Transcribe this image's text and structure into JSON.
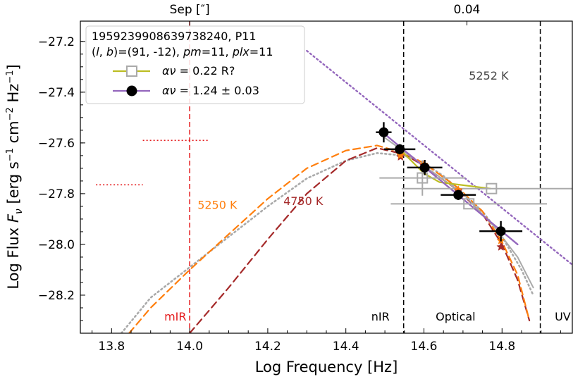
{
  "chart_data": {
    "type": "scatter",
    "xlabel": "Log Frequency [Hz]",
    "ylabel": "Log Flux Fν [erg s⁻¹ cm⁻² Hz⁻¹]",
    "ylabel_parts": {
      "main": "Log Flux ",
      "F": "F",
      "nu": "ν",
      "units_a": " [erg s",
      "exp1": "−1",
      "units_b": " cm",
      "exp2": "−2",
      "units_c": " Hz",
      "exp3": "−1",
      "units_d": "]"
    },
    "xlim": [
      13.72,
      14.98
    ],
    "ylim": [
      -28.35,
      -27.12
    ],
    "xticks": [
      13.8,
      14.0,
      14.2,
      14.4,
      14.6,
      14.8
    ],
    "xtick_labels": [
      "13.8",
      "14.0",
      "14.2",
      "14.4",
      "14.6",
      "14.8"
    ],
    "yticks": [
      -27.2,
      -27.4,
      -27.6,
      -27.8,
      -28.0,
      -28.2
    ],
    "ytick_labels": [
      "−27.2",
      "−27.4",
      "−27.6",
      "−27.8",
      "−28.0",
      "−28.2"
    ],
    "top_axis": {
      "label_left": "Sep [″]",
      "label_right": "0.04",
      "label_left_x": 14.0,
      "label_right_x": 14.71
    },
    "legend": {
      "title_line1": "1959239908639738240, P11",
      "title_line2": "(l, b)=(91, -12), pm=11, plx=11",
      "title_line2_parts": {
        "p1": "(",
        "l": "l",
        "p2": ", ",
        "b": "b",
        "p3": ")=(91, -12), ",
        "pm": "pm",
        "p4": "=11, ",
        "plx": "plx",
        "p5": "=11"
      },
      "entries": [
        {
          "symbol": "αν",
          "text": " =  0.22   R?",
          "color": "#bcbd22",
          "marker": "open-square"
        },
        {
          "symbol": "αν",
          "text": " =  1.24 ± 0.03",
          "color": "#9467bd",
          "marker": "filled-circle"
        }
      ]
    },
    "vertical_lines": [
      {
        "x": 14.0,
        "color": "#e41a1c",
        "style": "dashed",
        "label": "mIR"
      },
      {
        "x": 14.548,
        "color": "#000000",
        "style": "dashed",
        "label": "nIR"
      },
      {
        "x": 14.898,
        "color": "#000000",
        "style": "dashed",
        "label": "UV"
      }
    ],
    "region_labels": [
      {
        "text": "mIR",
        "x": 13.935,
        "y": -28.3,
        "color": "#e41a1c"
      },
      {
        "text": "nIR",
        "x": 14.465,
        "y": -28.3,
        "color": "#000000"
      },
      {
        "text": "Optical",
        "x": 14.63,
        "y": -28.3,
        "color": "#000000"
      },
      {
        "text": "UV",
        "x": 14.935,
        "y": -28.3,
        "color": "#000000"
      }
    ],
    "annotations": [
      {
        "text": "5252 K",
        "x": 14.715,
        "y": -27.35,
        "color": "#444444"
      },
      {
        "text": "5250 K",
        "x": 14.02,
        "y": -27.86,
        "color": "#ff7f0e"
      },
      {
        "text": "4750 K",
        "x": 14.24,
        "y": -27.845,
        "color": "#a52a2a"
      }
    ],
    "upper_limits": [
      {
        "x0": 13.88,
        "x1": 14.05,
        "y": -27.59,
        "color": "#e41a1c"
      },
      {
        "x0": 13.76,
        "x1": 13.88,
        "y": -27.765,
        "color": "#e41a1c"
      }
    ],
    "series": [
      {
        "name": "black filled points",
        "color": "#000000",
        "points": [
          {
            "x": 14.497,
            "y": -27.558,
            "xerr": 0.02,
            "yerr": 0.04
          },
          {
            "x": 14.538,
            "y": -27.625,
            "xerr": 0.04,
            "yerr": 0.02
          },
          {
            "x": 14.602,
            "y": -27.697,
            "xerr": 0.045,
            "yerr": 0.03
          },
          {
            "x": 14.688,
            "y": -27.805,
            "xerr": 0.045,
            "yerr": 0.02
          },
          {
            "x": 14.797,
            "y": -27.948,
            "xerr": 0.055,
            "yerr": 0.04
          }
        ]
      },
      {
        "name": "grey open squares",
        "color": "#aaaaaa",
        "points": [
          {
            "x": 14.596,
            "y": -27.738,
            "xerr": 0.11,
            "yerr": 0.07
          },
          {
            "x": 14.715,
            "y": -27.84,
            "xerr": 0.2,
            "yerr": 0.0
          },
          {
            "x": 14.773,
            "y": -27.78,
            "xerr": 0.23,
            "yerr": 0.0
          }
        ]
      },
      {
        "name": "orange stars",
        "color": "#ff7f0e",
        "points": [
          {
            "x": 14.54,
            "y": -27.648
          },
          {
            "x": 14.6,
            "y": -27.685
          },
          {
            "x": 14.688,
            "y": -27.785
          },
          {
            "x": 14.797,
            "y": -27.985
          }
        ]
      },
      {
        "name": "brown stars",
        "color": "#a52a2a",
        "points": [
          {
            "x": 14.54,
            "y": -27.655
          },
          {
            "x": 14.6,
            "y": -27.69
          },
          {
            "x": 14.688,
            "y": -27.79
          },
          {
            "x": 14.797,
            "y": -28.01
          }
        ]
      },
      {
        "name": "purple power law (dotted)",
        "color": "#9467bd",
        "style": "dotted",
        "points": [
          {
            "x": 14.3,
            "y": -27.237
          },
          {
            "x": 14.98,
            "y": -28.08
          }
        ]
      },
      {
        "name": "purple power law fit",
        "color": "#9467bd",
        "style": "solid",
        "points": [
          {
            "x": 14.49,
            "y": -27.553
          },
          {
            "x": 14.84,
            "y": -28.0
          }
        ]
      },
      {
        "name": "olive power law fit",
        "color": "#bcbd22",
        "style": "solid",
        "points": [
          {
            "x": 14.548,
            "y": -27.64
          },
          {
            "x": 14.6,
            "y": -27.72
          },
          {
            "x": 14.64,
            "y": -27.755
          },
          {
            "x": 14.77,
            "y": -27.78
          }
        ]
      },
      {
        "name": "grey solid curve",
        "color": "#aaaaaa",
        "style": "solid",
        "points": [
          {
            "x": 14.5,
            "y": -27.58
          },
          {
            "x": 14.6,
            "y": -27.69
          },
          {
            "x": 14.7,
            "y": -27.8
          },
          {
            "x": 14.78,
            "y": -27.93
          },
          {
            "x": 14.84,
            "y": -28.05
          },
          {
            "x": 14.88,
            "y": -28.17
          }
        ]
      },
      {
        "name": "5252 K blackbody (grey dotted)",
        "color": "#aaaaaa",
        "style": "dotted",
        "points": [
          {
            "x": 13.825,
            "y": -28.35
          },
          {
            "x": 13.9,
            "y": -28.21
          },
          {
            "x": 14.0,
            "y": -28.09
          },
          {
            "x": 14.1,
            "y": -27.97
          },
          {
            "x": 14.2,
            "y": -27.85
          },
          {
            "x": 14.3,
            "y": -27.74
          },
          {
            "x": 14.4,
            "y": -27.67
          },
          {
            "x": 14.48,
            "y": -27.64
          },
          {
            "x": 14.55,
            "y": -27.65
          },
          {
            "x": 14.6,
            "y": -27.68
          },
          {
            "x": 14.65,
            "y": -27.73
          },
          {
            "x": 14.7,
            "y": -27.8
          },
          {
            "x": 14.75,
            "y": -27.87
          },
          {
            "x": 14.8,
            "y": -27.97
          },
          {
            "x": 14.85,
            "y": -28.1
          },
          {
            "x": 14.88,
            "y": -28.2
          }
        ]
      },
      {
        "name": "5250 K model (orange dashed)",
        "color": "#ff7f0e",
        "style": "dashed",
        "points": [
          {
            "x": 13.845,
            "y": -28.35
          },
          {
            "x": 13.9,
            "y": -28.25
          },
          {
            "x": 14.0,
            "y": -28.1
          },
          {
            "x": 14.1,
            "y": -27.96
          },
          {
            "x": 14.2,
            "y": -27.82
          },
          {
            "x": 14.3,
            "y": -27.7
          },
          {
            "x": 14.4,
            "y": -27.63
          },
          {
            "x": 14.48,
            "y": -27.61
          },
          {
            "x": 14.55,
            "y": -27.64
          },
          {
            "x": 14.6,
            "y": -27.68
          },
          {
            "x": 14.69,
            "y": -27.78
          },
          {
            "x": 14.75,
            "y": -27.87
          },
          {
            "x": 14.8,
            "y": -27.99
          },
          {
            "x": 14.84,
            "y": -28.12
          },
          {
            "x": 14.87,
            "y": -28.3
          }
        ]
      },
      {
        "name": "4750 K model (brown dashed)",
        "color": "#a52a2a",
        "style": "dashed",
        "points": [
          {
            "x": 14.0,
            "y": -28.35
          },
          {
            "x": 14.1,
            "y": -28.17
          },
          {
            "x": 14.2,
            "y": -27.98
          },
          {
            "x": 14.3,
            "y": -27.8
          },
          {
            "x": 14.4,
            "y": -27.67
          },
          {
            "x": 14.48,
            "y": -27.62
          },
          {
            "x": 14.55,
            "y": -27.645
          },
          {
            "x": 14.6,
            "y": -27.69
          },
          {
            "x": 14.69,
            "y": -27.79
          },
          {
            "x": 14.75,
            "y": -27.88
          },
          {
            "x": 14.8,
            "y": -28.0
          },
          {
            "x": 14.84,
            "y": -28.14
          },
          {
            "x": 14.87,
            "y": -28.3
          }
        ]
      }
    ]
  }
}
